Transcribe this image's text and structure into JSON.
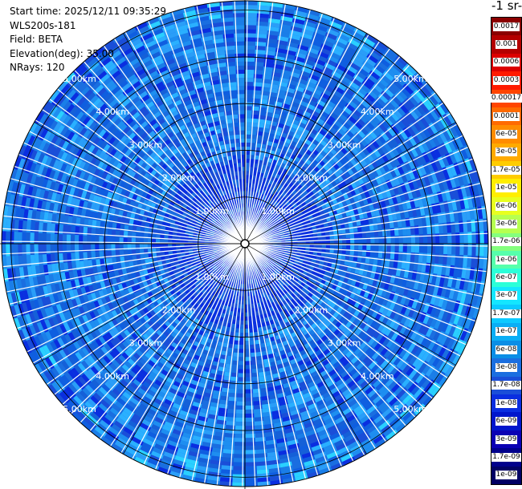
{
  "info": {
    "start_time": "Start time: 2025/12/11 09:35:29",
    "instrument": "WLS200s-181",
    "field": "Field: BETA",
    "elevation": "Elevation(deg): 35.00",
    "nrays": "NRays: 120"
  },
  "colorbar": {
    "title": "-1 sr-",
    "labels": [
      "0.0017",
      "0.001",
      "0.0006",
      "0.0003",
      "0.00017",
      "0.0001",
      "6e-05",
      "3e-05",
      "1.7e-05",
      "1e-05",
      "6e-06",
      "3e-06",
      "1.7e-06",
      "1e-06",
      "6e-07",
      "3e-07",
      "1.7e-07",
      "1e-07",
      "6e-08",
      "3e-08",
      "1.7e-08",
      "1e-08",
      "6e-09",
      "3e-09",
      "1.7e-09",
      "1e-09"
    ],
    "colors": [
      "#8b0000",
      "#b40000",
      "#dc0000",
      "#ff1a00",
      "#ff4500",
      "#ff6a00",
      "#ff8c00",
      "#ffaa00",
      "#ffcc00",
      "#ffee00",
      "#e8ff20",
      "#b6ff50",
      "#84ff7e",
      "#56ffab",
      "#2bffd8",
      "#14e6ff",
      "#0ccaff",
      "#0aaef5",
      "#0a8ee6",
      "#1a6ee0",
      "#1a4ed8",
      "#0a2ee0",
      "#0016cc",
      "#0a00b4",
      "#00008c",
      "#000064"
    ]
  },
  "chart_data": {
    "type": "heatmap",
    "projection": "polar PPI",
    "rays": 120,
    "range_unit": "km",
    "max_range_km": 5.2,
    "ring_km": [
      1,
      2,
      3,
      4,
      5
    ],
    "ring_labels": [
      "1.00km",
      "2.00km",
      "3.00km",
      "4.00km",
      "5.00km"
    ],
    "scale": "log",
    "description_palette": "jet (low=dark blue, high=dark red)"
  }
}
